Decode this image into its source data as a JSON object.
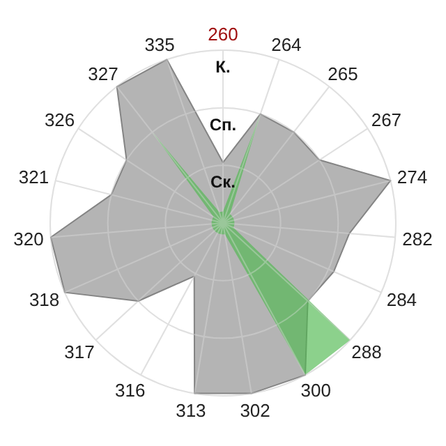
{
  "chart_data": {
    "type": "radar",
    "categories": [
      "260",
      "264",
      "265",
      "267",
      "274",
      "282",
      "284",
      "288",
      "300",
      "302",
      "313",
      "316",
      "317",
      "318",
      "320",
      "321",
      "326",
      "327",
      "335"
    ],
    "ylim": [
      0,
      3
    ],
    "yticks": [
      {
        "value": 1,
        "label": "Ск."
      },
      {
        "value": 2,
        "label": "Сп."
      },
      {
        "value": 3,
        "label": "К."
      }
    ],
    "grid": true,
    "series": [
      {
        "color": "#b0b0b0",
        "values": [
          1.05,
          2,
          2,
          2,
          3,
          2.2,
          2.1,
          2,
          3,
          3,
          3,
          1.05,
          2,
          3,
          3,
          2,
          2,
          3,
          3
        ]
      },
      {
        "color": "#4fb84f",
        "values": [
          0.2,
          2,
          0.2,
          0.2,
          0.2,
          0.2,
          0.2,
          3,
          3,
          0.2,
          0.2,
          0.2,
          0.2,
          0.2,
          0.2,
          0.2,
          0.2,
          2,
          0.2
        ]
      }
    ]
  }
}
